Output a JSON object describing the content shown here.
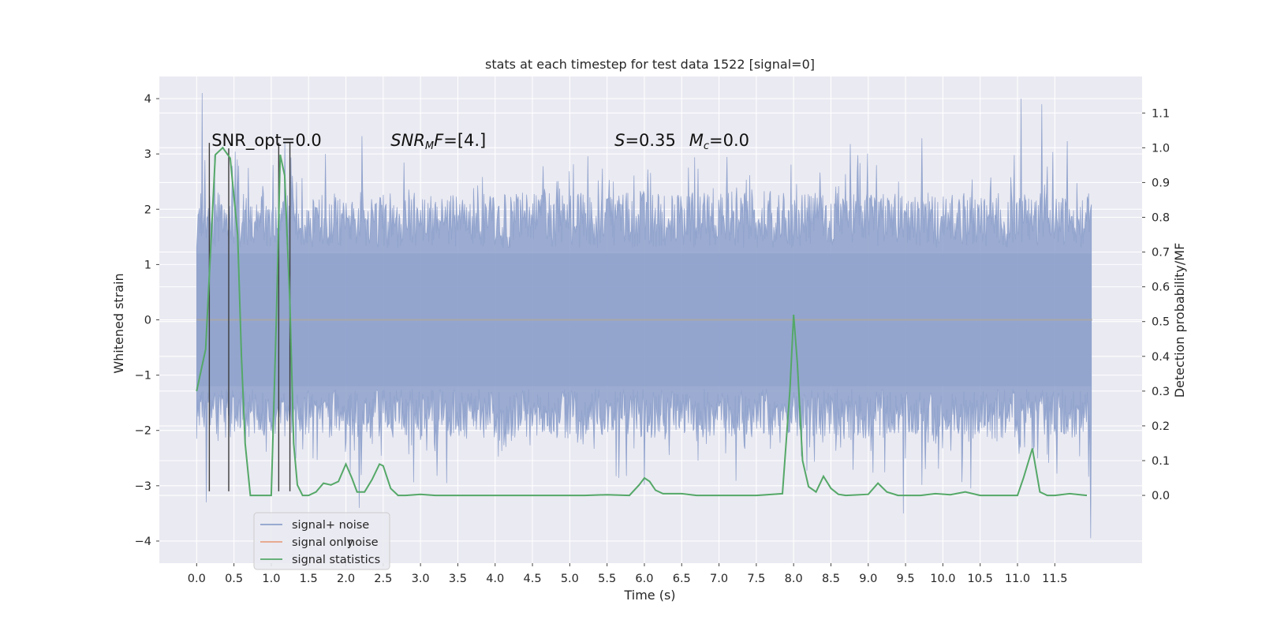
{
  "chart_data": {
    "type": "line",
    "title": "stats at each timestep for test data 1522 [signal=0]",
    "xlabel": "Time (s)",
    "ylabel": "Whitened strain",
    "y2label": "Detection probability/MF",
    "xlim": [
      -0.5,
      12.67
    ],
    "ylim": [
      -4.4,
      4.4
    ],
    "y2lim": [
      -0.195,
      1.205
    ],
    "xticks": [
      0.0,
      0.5,
      1.0,
      1.5,
      2.0,
      2.5,
      3.0,
      3.5,
      4.0,
      4.5,
      5.0,
      5.5,
      6.0,
      6.5,
      7.0,
      7.5,
      8.0,
      8.5,
      9.0,
      9.5,
      10.0,
      10.5,
      11.0,
      11.5
    ],
    "xtick_labels": [
      "0.0",
      "0.5",
      "1.0",
      "1.5",
      "2.0",
      "2.5",
      "3.0",
      "3.5",
      "4.0",
      "4.5",
      "5.0",
      "5.5",
      "6.0",
      "6.5",
      "7.0",
      "7.5",
      "8.0",
      "8.5",
      "9.0",
      "9.5",
      "10.0",
      "10.5",
      "11.0",
      "11.5"
    ],
    "yticks": [
      -4,
      -3,
      -2,
      -1,
      0,
      1,
      2,
      3,
      4
    ],
    "ytick_labels": [
      "−4",
      "−3",
      "−2",
      "−1",
      "0",
      "1",
      "2",
      "3",
      "4"
    ],
    "y2ticks": [
      0.0,
      0.1,
      0.2,
      0.3,
      0.4,
      0.5,
      0.6,
      0.7,
      0.8,
      0.9,
      1.0,
      1.1
    ],
    "y2tick_labels": [
      "0.0",
      "0.1",
      "0.2",
      "0.3",
      "0.4",
      "0.5",
      "0.6",
      "0.7",
      "0.8",
      "0.9",
      "1.0",
      "1.1"
    ],
    "grid": true,
    "legend_position": "lower-left",
    "series": [
      {
        "name": "signal+ noise",
        "axis": "left",
        "color": "#8da0cb",
        "x_range": [
          0.0,
          11.99
        ],
        "y_range": [
          -3.95,
          4.1
        ],
        "notable_peaks": [
          [
            0.07,
            4.1
          ],
          [
            11.05,
            4.0
          ],
          [
            11.33,
            3.9
          ],
          [
            0.13,
            -3.3
          ],
          [
            9.47,
            -3.5
          ],
          [
            2.18,
            -3.4
          ],
          [
            11.98,
            -3.95
          ]
        ]
      },
      {
        "name": "signal only",
        "axis": "left",
        "color": "#e8a283",
        "x": [
          0.0,
          12.0
        ],
        "y": [
          0.0,
          0.0
        ]
      },
      {
        "name": "signal statistics",
        "axis": "right",
        "color": "#55a868",
        "x": [
          0.0,
          0.12,
          0.25,
          0.35,
          0.45,
          0.55,
          0.6,
          0.65,
          0.72,
          0.8,
          0.9,
          1.0,
          1.07,
          1.12,
          1.18,
          1.25,
          1.3,
          1.35,
          1.42,
          1.5,
          1.6,
          1.7,
          1.8,
          1.9,
          2.0,
          2.08,
          2.15,
          2.25,
          2.35,
          2.45,
          2.5,
          2.6,
          2.7,
          2.8,
          3.0,
          3.2,
          3.5,
          4.0,
          4.5,
          5.0,
          5.2,
          5.5,
          5.8,
          5.93,
          6.0,
          6.07,
          6.15,
          6.25,
          6.5,
          6.7,
          7.0,
          7.5,
          7.85,
          7.95,
          8.0,
          8.05,
          8.12,
          8.2,
          8.3,
          8.4,
          8.5,
          8.6,
          8.7,
          9.0,
          9.13,
          9.25,
          9.4,
          9.7,
          9.9,
          10.1,
          10.3,
          10.5,
          11.0,
          11.08,
          11.2,
          11.3,
          11.4,
          11.5,
          11.7,
          11.93
        ],
        "y": [
          0.3,
          0.42,
          0.98,
          1.0,
          0.97,
          0.75,
          0.4,
          0.15,
          0.0,
          0.0,
          0.0,
          0.0,
          0.52,
          0.98,
          0.92,
          0.55,
          0.15,
          0.03,
          0.0,
          0.0,
          0.01,
          0.035,
          0.03,
          0.04,
          0.09,
          0.05,
          0.01,
          0.01,
          0.045,
          0.09,
          0.085,
          0.02,
          0.0,
          0.0,
          0.003,
          0.0,
          0.0,
          0.0,
          0.0,
          0.0,
          0.0,
          0.002,
          0.0,
          0.03,
          0.05,
          0.04,
          0.015,
          0.005,
          0.005,
          0.0,
          0.0,
          0.0,
          0.005,
          0.3,
          0.52,
          0.38,
          0.1,
          0.025,
          0.01,
          0.055,
          0.02,
          0.003,
          0.0,
          0.003,
          0.035,
          0.01,
          0.0,
          0.0,
          0.005,
          0.002,
          0.01,
          0.0,
          0.0,
          0.05,
          0.135,
          0.01,
          0.0,
          0.0,
          0.005,
          0.0
        ]
      }
    ],
    "vertical_markers": {
      "color": "#3c3c3c",
      "lines": [
        [
          0.17,
          -3.1,
          3.2
        ],
        [
          0.43,
          -3.1,
          3.1
        ],
        [
          1.1,
          -3.1,
          3.2
        ],
        [
          1.25,
          -3.1,
          3.2
        ]
      ]
    },
    "annotations": [
      {
        "text": "SNR_opt=0.0",
        "x": 0.2,
        "y": 3.2
      },
      {
        "text_italic": "SNR",
        "text_sub": "M",
        "text_italic2": "F",
        "text": "=[4.]",
        "x": 2.6,
        "y": 3.2
      },
      {
        "text_italic": "S",
        "text": "=0.35",
        "x": 5.6,
        "y": 3.2
      },
      {
        "text_italic": "M",
        "text_sub": "c",
        "text": "=0.0",
        "x": 6.6,
        "y": 3.2
      }
    ],
    "legend": [
      {
        "label": "signal+ noise",
        "color": "#8da0cb"
      },
      {
        "label": "signal only",
        "color": "#e8a283"
      },
      {
        "label": "signal statistics",
        "color": "#55a868"
      }
    ],
    "legend_ghost_text": "noise"
  }
}
